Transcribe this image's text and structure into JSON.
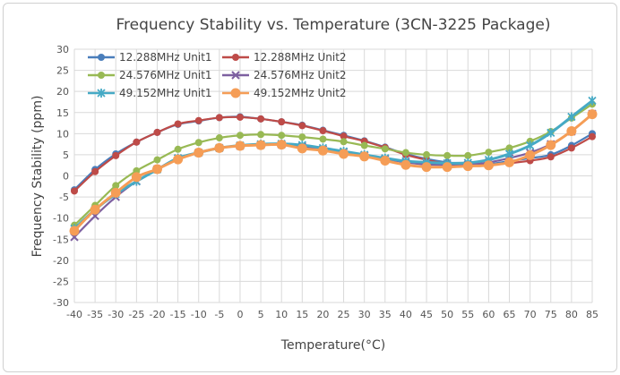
{
  "chart_data": {
    "type": "line",
    "title": "Frequency Stability vs. Temperature (3CN-3225 Package)",
    "xlabel": "Temperature(°C)",
    "ylabel": "Frequency Stability (ppm)",
    "xlim": [
      -40,
      85
    ],
    "ylim": [
      -30,
      30
    ],
    "grid": true,
    "legend": "top-left",
    "x": [
      -40,
      -35,
      -30,
      -25,
      -20,
      -15,
      -10,
      -5,
      0,
      5,
      10,
      15,
      20,
      25,
      30,
      35,
      40,
      45,
      50,
      55,
      60,
      65,
      70,
      75,
      80,
      85
    ],
    "yticks": [
      -30,
      -25,
      -20,
      -15,
      -10,
      -5,
      0,
      5,
      10,
      15,
      20,
      25,
      30
    ],
    "series": [
      {
        "name": "12.288MHz Unit1",
        "color": "#4a7ebb",
        "marker": "circle",
        "values": [
          -3.3,
          1.5,
          5.2,
          8,
          10.3,
          12.2,
          13,
          13.8,
          14,
          13.5,
          12.8,
          12,
          10.8,
          9.6,
          8.3,
          6.8,
          5.2,
          4,
          3.2,
          2.8,
          2.8,
          3.5,
          4.2,
          5,
          7.2,
          10
        ]
      },
      {
        "name": "12.288MHz Unit2",
        "color": "#be4b48",
        "marker": "circle",
        "values": [
          -3.6,
          1,
          4.8,
          8,
          10.3,
          12.3,
          13.1,
          13.8,
          13.9,
          13.5,
          12.8,
          11.9,
          10.7,
          9.4,
          8.2,
          6.7,
          5,
          3.8,
          2.8,
          2.5,
          2.6,
          3,
          3.6,
          4.5,
          6.6,
          9.3
        ]
      },
      {
        "name": "24.576MHz Unit1",
        "color": "#98b954",
        "marker": "circle",
        "values": [
          -11.7,
          -7,
          -2.3,
          1.2,
          3.8,
          6.3,
          7.9,
          9,
          9.6,
          9.8,
          9.6,
          9.2,
          8.7,
          8.1,
          7.2,
          6.4,
          5.5,
          5,
          4.8,
          4.8,
          5.6,
          6.6,
          8.2,
          10.5,
          13.7,
          17
        ]
      },
      {
        "name": "24.576MHz Unit2",
        "color": "#7d60a0",
        "marker": "x",
        "values": [
          -14.5,
          -9.5,
          -5,
          -1.3,
          1.6,
          4.2,
          5.5,
          6.6,
          7.1,
          7.3,
          7.4,
          7,
          6.3,
          5.6,
          4.8,
          4,
          3.2,
          2.7,
          2.6,
          2.7,
          3.2,
          4.2,
          5.5,
          7.5,
          10.5,
          14.7
        ]
      },
      {
        "name": "49.152MHz Unit1",
        "color": "#46aac5",
        "marker": "asterisk",
        "values": [
          -12.5,
          -8,
          -4.3,
          -1.3,
          1.5,
          4.2,
          5.5,
          6.6,
          7.2,
          7.5,
          7.6,
          7.3,
          6.6,
          5.8,
          5,
          4.2,
          3.5,
          3.2,
          3,
          3.1,
          3.8,
          5.2,
          7.2,
          10.2,
          14,
          17.8
        ]
      },
      {
        "name": "49.152MHz Unit2",
        "color": "#f59d56",
        "marker": "circle-large",
        "values": [
          -13,
          -8,
          -4,
          -0.3,
          1.6,
          3.9,
          5.5,
          6.6,
          7.1,
          7.3,
          7.4,
          6.5,
          6,
          5.2,
          4.6,
          3.6,
          2.6,
          2.1,
          2.1,
          2.3,
          2.5,
          3.2,
          4.9,
          7.3,
          10.6,
          14.6
        ]
      }
    ]
  }
}
